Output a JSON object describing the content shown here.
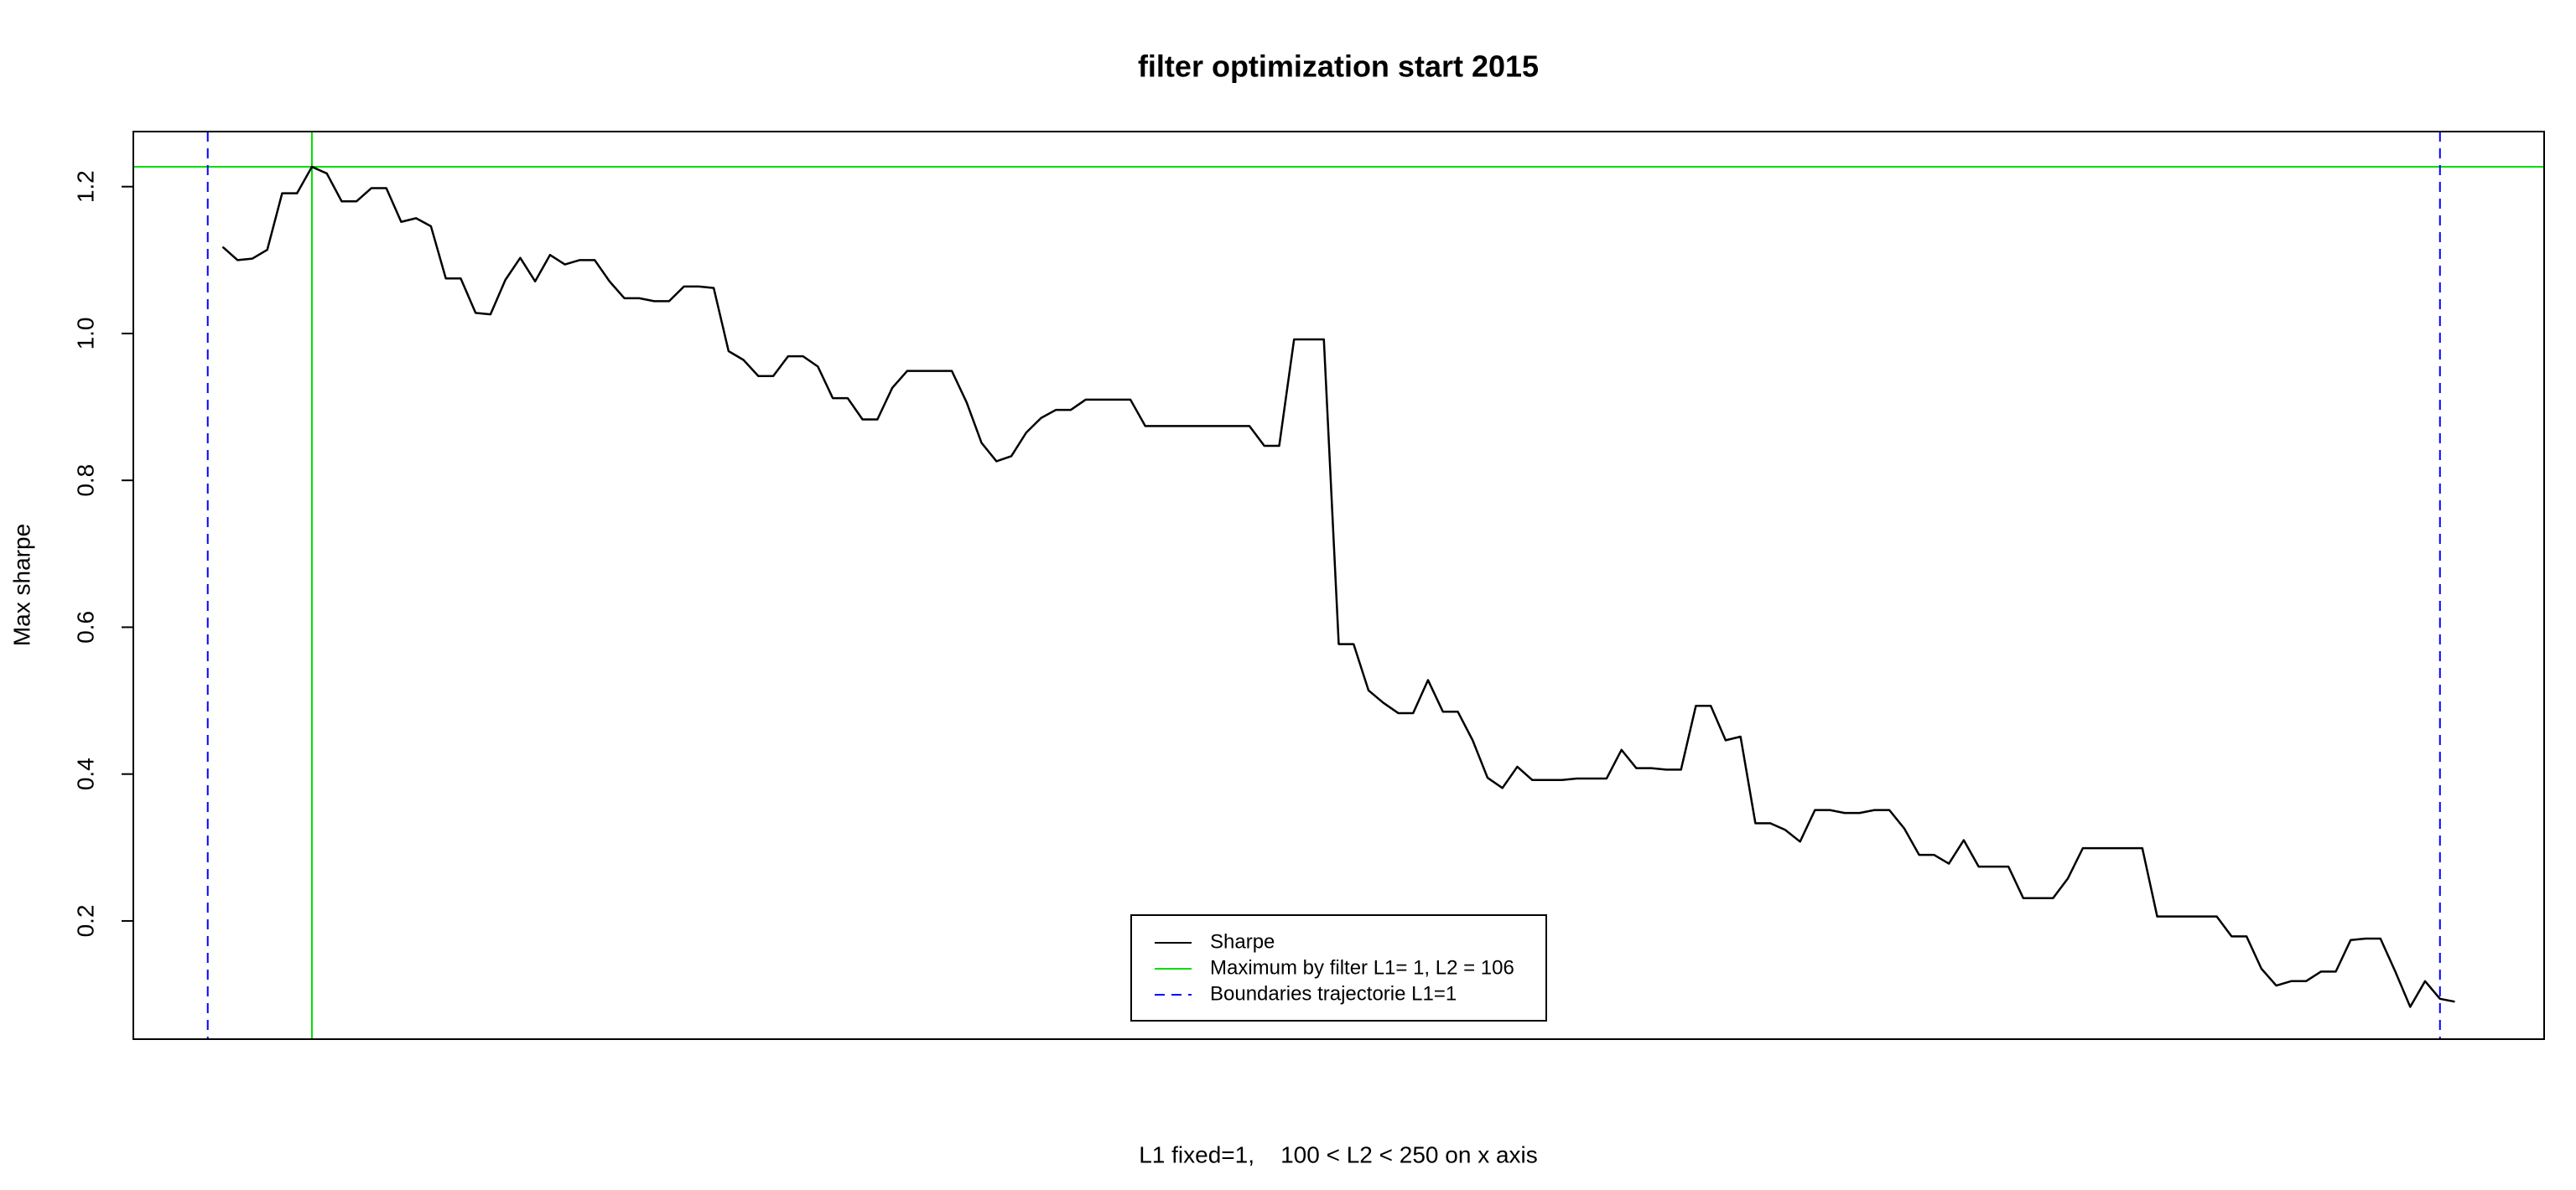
{
  "chart_data": {
    "type": "line",
    "title": "filter optimization start 2015",
    "x_label": "L1 fixed=1,    100 < L2 < 250 on x axis",
    "y_label": "Max sharpe",
    "xlim": [
      94,
      256
    ],
    "ylim": [
      0.039,
      1.275
    ],
    "yticks": [
      0.2,
      0.4,
      0.6,
      0.8,
      {
        "value": 1,
        "label": "1.0"
      },
      1.2
    ],
    "legend": "bottom",
    "series": [
      {
        "name": "Sharpe",
        "color": "#000000",
        "x": [
          100,
          101,
          102,
          103,
          104,
          105,
          106,
          107,
          108,
          109,
          110,
          111,
          112,
          113,
          114,
          115,
          116,
          117,
          118,
          119,
          120,
          121,
          122,
          123,
          124,
          125,
          126,
          127,
          128,
          129,
          130,
          131,
          132,
          133,
          134,
          135,
          136,
          137,
          138,
          139,
          140,
          141,
          142,
          143,
          144,
          145,
          146,
          147,
          148,
          149,
          150,
          151,
          152,
          153,
          154,
          155,
          156,
          157,
          158,
          159,
          160,
          161,
          162,
          163,
          164,
          165,
          166,
          167,
          168,
          169,
          170,
          171,
          172,
          173,
          174,
          175,
          176,
          177,
          178,
          179,
          180,
          181,
          182,
          183,
          184,
          185,
          186,
          187,
          188,
          189,
          190,
          191,
          192,
          193,
          194,
          195,
          196,
          197,
          198,
          199,
          200,
          201,
          202,
          203,
          204,
          205,
          206,
          207,
          208,
          209,
          210,
          211,
          212,
          213,
          214,
          215,
          216,
          217,
          218,
          219,
          220,
          221,
          222,
          223,
          224,
          225,
          226,
          227,
          228,
          229,
          230,
          231,
          232,
          233,
          234,
          235,
          236,
          237,
          238,
          239,
          240,
          241,
          242,
          243,
          244,
          245,
          246,
          247,
          248,
          249,
          250
        ],
        "values": [
          1.118,
          1.1,
          1.102,
          1.114,
          1.191,
          1.191,
          1.227,
          1.218,
          1.18,
          1.18,
          1.198,
          1.198,
          1.152,
          1.157,
          1.146,
          1.075,
          1.075,
          1.028,
          1.026,
          1.073,
          1.103,
          1.071,
          1.107,
          1.094,
          1.1,
          1.1,
          1.071,
          1.048,
          1.048,
          1.044,
          1.044,
          1.064,
          1.064,
          1.062,
          0.976,
          0.964,
          0.942,
          0.942,
          0.969,
          0.969,
          0.955,
          0.912,
          0.912,
          0.883,
          0.883,
          0.926,
          0.949,
          0.949,
          0.949,
          0.949,
          0.906,
          0.851,
          0.826,
          0.833,
          0.865,
          0.885,
          0.896,
          0.896,
          0.91,
          0.91,
          0.91,
          0.91,
          0.874,
          0.874,
          0.874,
          0.874,
          0.874,
          0.874,
          0.874,
          0.874,
          0.847,
          0.847,
          0.992,
          0.992,
          0.992,
          0.577,
          0.577,
          0.514,
          0.497,
          0.483,
          0.483,
          0.528,
          0.485,
          0.485,
          0.446,
          0.395,
          0.381,
          0.41,
          0.392,
          0.392,
          0.392,
          0.394,
          0.394,
          0.394,
          0.433,
          0.408,
          0.408,
          0.406,
          0.406,
          0.493,
          0.493,
          0.446,
          0.451,
          0.333,
          0.333,
          0.324,
          0.308,
          0.351,
          0.351,
          0.347,
          0.347,
          0.351,
          0.351,
          0.326,
          0.29,
          0.29,
          0.278,
          0.31,
          0.274,
          0.274,
          0.274,
          0.231,
          0.231,
          0.231,
          0.258,
          0.299,
          0.299,
          0.299,
          0.299,
          0.299,
          0.206,
          0.206,
          0.206,
          0.206,
          0.206,
          0.179,
          0.179,
          0.135,
          0.112,
          0.118,
          0.118,
          0.131,
          0.131,
          0.174,
          0.176,
          0.176,
          0.131,
          0.083,
          0.118,
          0.094,
          0.09
        ]
      }
    ],
    "reference_lines": [
      {
        "name": "Maximum by filter L1= 1, L2 = 106",
        "color": "#00dd00",
        "style": "solid",
        "x": [
          106
        ],
        "y": [
          1.227
        ]
      },
      {
        "name": "Boundaries trajectorie L1=1",
        "color": "#0000ff",
        "style": "dashed",
        "x": [
          99,
          249
        ]
      }
    ]
  }
}
